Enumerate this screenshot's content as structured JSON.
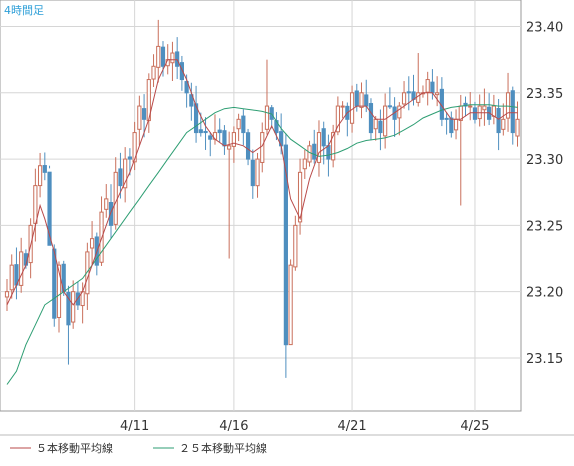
{
  "chart_data": {
    "type": "candlestick",
    "timeframe_label": "4時間足",
    "x_tick_labels": [
      "4/11",
      "4/16",
      "4/21",
      "4/25"
    ],
    "x_tick_bar_index": [
      27,
      48,
      73,
      99
    ],
    "y_ticks": [
      23.15,
      23.2,
      23.25,
      23.3,
      23.35,
      23.4
    ],
    "ylim": [
      23.11,
      23.42
    ],
    "grid": true,
    "legend_position": "bottom-left",
    "colors": {
      "up": "#c96f5b",
      "down": "#4f8fbf",
      "ma5": "#b94a4a",
      "ma25": "#2e9e73",
      "grid": "#d6d6d6",
      "title": "#2e9fd8"
    },
    "series": [
      {
        "name": "５本移動平均線",
        "color": "#b94a4a"
      },
      {
        "name": "２５本移動平均線",
        "color": "#2e9e73"
      }
    ],
    "close_path": [
      [
        0,
        23.2
      ],
      [
        1,
        23.22
      ],
      [
        2,
        23.205
      ],
      [
        3,
        23.23
      ],
      [
        4,
        23.22
      ],
      [
        6,
        23.28
      ],
      [
        7,
        23.295
      ],
      [
        8,
        23.29
      ],
      [
        10,
        23.18
      ],
      [
        11,
        23.22
      ],
      [
        12,
        23.2
      ],
      [
        13,
        23.175
      ],
      [
        14,
        23.2
      ],
      [
        15,
        23.19
      ],
      [
        16,
        23.2
      ],
      [
        17,
        23.23
      ],
      [
        18,
        23.24
      ],
      [
        19,
        23.22
      ],
      [
        20,
        23.26
      ],
      [
        21,
        23.27
      ],
      [
        22,
        23.25
      ],
      [
        23,
        23.29
      ],
      [
        24,
        23.28
      ],
      [
        25,
        23.3
      ],
      [
        26,
        23.3
      ],
      [
        27,
        23.32
      ],
      [
        28,
        23.34
      ],
      [
        29,
        23.33
      ],
      [
        30,
        23.36
      ],
      [
        31,
        23.37
      ],
      [
        32,
        23.385
      ],
      [
        33,
        23.37
      ],
      [
        34,
        23.375
      ],
      [
        35,
        23.38
      ],
      [
        36,
        23.37
      ],
      [
        37,
        23.36
      ],
      [
        38,
        23.35
      ],
      [
        39,
        23.34
      ],
      [
        40,
        23.32
      ],
      [
        41,
        23.32
      ],
      [
        42,
        23.32
      ],
      [
        43,
        23.315
      ],
      [
        44,
        23.32
      ],
      [
        45,
        23.32
      ],
      [
        46,
        23.31
      ],
      [
        47,
        23.31
      ],
      [
        48,
        23.32
      ],
      [
        49,
        23.33
      ],
      [
        50,
        23.32
      ],
      [
        51,
        23.3
      ],
      [
        52,
        23.28
      ],
      [
        53,
        23.3
      ],
      [
        54,
        23.32
      ],
      [
        55,
        23.34
      ],
      [
        56,
        23.33
      ],
      [
        57,
        23.32
      ],
      [
        58,
        23.31
      ],
      [
        59,
        23.16
      ],
      [
        60,
        23.22
      ],
      [
        61,
        23.25
      ],
      [
        62,
        23.29
      ],
      [
        63,
        23.3
      ],
      [
        64,
        23.31
      ],
      [
        65,
        23.3
      ],
      [
        66,
        23.32
      ],
      [
        67,
        23.31
      ],
      [
        68,
        23.3
      ],
      [
        69,
        23.32
      ],
      [
        70,
        23.34
      ],
      [
        71,
        23.34
      ],
      [
        72,
        23.33
      ],
      [
        73,
        23.35
      ],
      [
        74,
        23.34
      ],
      [
        75,
        23.35
      ],
      [
        76,
        23.34
      ],
      [
        77,
        23.32
      ],
      [
        78,
        23.33
      ],
      [
        79,
        23.32
      ],
      [
        80,
        23.34
      ],
      [
        81,
        23.34
      ],
      [
        82,
        23.33
      ],
      [
        83,
        23.34
      ],
      [
        84,
        23.35
      ],
      [
        85,
        23.35
      ],
      [
        86,
        23.345
      ],
      [
        87,
        23.35
      ],
      [
        88,
        23.35
      ],
      [
        89,
        23.36
      ],
      [
        90,
        23.35
      ],
      [
        91,
        23.35
      ],
      [
        92,
        23.33
      ],
      [
        93,
        23.33
      ],
      [
        94,
        23.32
      ],
      [
        95,
        23.33
      ],
      [
        96,
        23.34
      ],
      [
        97,
        23.34
      ],
      [
        98,
        23.34
      ],
      [
        99,
        23.33
      ],
      [
        100,
        23.34
      ],
      [
        101,
        23.34
      ],
      [
        102,
        23.33
      ],
      [
        103,
        23.34
      ],
      [
        104,
        23.32
      ],
      [
        105,
        23.33
      ],
      [
        106,
        23.35
      ],
      [
        107,
        23.32
      ],
      [
        108,
        23.33
      ]
    ],
    "ma5_path": [
      [
        0,
        23.19
      ],
      [
        2,
        23.205
      ],
      [
        4,
        23.22
      ],
      [
        6,
        23.25
      ],
      [
        7,
        23.265
      ],
      [
        8,
        23.255
      ],
      [
        10,
        23.23
      ],
      [
        12,
        23.2
      ],
      [
        14,
        23.19
      ],
      [
        16,
        23.2
      ],
      [
        18,
        23.22
      ],
      [
        20,
        23.24
      ],
      [
        22,
        23.26
      ],
      [
        24,
        23.275
      ],
      [
        26,
        23.29
      ],
      [
        28,
        23.31
      ],
      [
        30,
        23.33
      ],
      [
        32,
        23.36
      ],
      [
        34,
        23.375
      ],
      [
        36,
        23.375
      ],
      [
        38,
        23.36
      ],
      [
        40,
        23.34
      ],
      [
        42,
        23.325
      ],
      [
        44,
        23.315
      ],
      [
        46,
        23.31
      ],
      [
        48,
        23.312
      ],
      [
        50,
        23.31
      ],
      [
        52,
        23.305
      ],
      [
        54,
        23.31
      ],
      [
        56,
        23.325
      ],
      [
        58,
        23.31
      ],
      [
        60,
        23.27
      ],
      [
        62,
        23.255
      ],
      [
        64,
        23.285
      ],
      [
        66,
        23.305
      ],
      [
        68,
        23.31
      ],
      [
        70,
        23.325
      ],
      [
        72,
        23.335
      ],
      [
        74,
        23.34
      ],
      [
        76,
        23.34
      ],
      [
        78,
        23.33
      ],
      [
        80,
        23.33
      ],
      [
        82,
        23.335
      ],
      [
        84,
        23.34
      ],
      [
        86,
        23.345
      ],
      [
        88,
        23.35
      ],
      [
        90,
        23.35
      ],
      [
        92,
        23.34
      ],
      [
        94,
        23.33
      ],
      [
        96,
        23.33
      ],
      [
        98,
        23.335
      ],
      [
        100,
        23.335
      ],
      [
        102,
        23.335
      ],
      [
        104,
        23.33
      ],
      [
        106,
        23.335
      ],
      [
        108,
        23.335
      ]
    ],
    "ma25_path": [
      [
        0,
        23.13
      ],
      [
        2,
        23.14
      ],
      [
        4,
        23.16
      ],
      [
        6,
        23.175
      ],
      [
        8,
        23.19
      ],
      [
        10,
        23.195
      ],
      [
        12,
        23.2
      ],
      [
        14,
        23.205
      ],
      [
        16,
        23.21
      ],
      [
        18,
        23.22
      ],
      [
        20,
        23.23
      ],
      [
        22,
        23.24
      ],
      [
        24,
        23.25
      ],
      [
        26,
        23.26
      ],
      [
        28,
        23.27
      ],
      [
        30,
        23.28
      ],
      [
        32,
        23.29
      ],
      [
        34,
        23.3
      ],
      [
        36,
        23.31
      ],
      [
        38,
        23.32
      ],
      [
        40,
        23.325
      ],
      [
        42,
        23.33
      ],
      [
        44,
        23.335
      ],
      [
        46,
        23.338
      ],
      [
        48,
        23.339
      ],
      [
        50,
        23.338
      ],
      [
        52,
        23.337
      ],
      [
        54,
        23.336
      ],
      [
        56,
        23.334
      ],
      [
        58,
        23.323
      ],
      [
        60,
        23.315
      ],
      [
        62,
        23.31
      ],
      [
        64,
        23.305
      ],
      [
        66,
        23.302
      ],
      [
        68,
        23.303
      ],
      [
        70,
        23.305
      ],
      [
        72,
        23.308
      ],
      [
        74,
        23.312
      ],
      [
        76,
        23.314
      ],
      [
        78,
        23.315
      ],
      [
        80,
        23.316
      ],
      [
        82,
        23.318
      ],
      [
        84,
        23.322
      ],
      [
        86,
        23.326
      ],
      [
        88,
        23.331
      ],
      [
        90,
        23.334
      ],
      [
        92,
        23.337
      ],
      [
        94,
        23.339
      ],
      [
        96,
        23.34
      ],
      [
        98,
        23.341
      ],
      [
        100,
        23.341
      ],
      [
        102,
        23.341
      ],
      [
        104,
        23.34
      ],
      [
        106,
        23.34
      ],
      [
        108,
        23.339
      ]
    ]
  }
}
